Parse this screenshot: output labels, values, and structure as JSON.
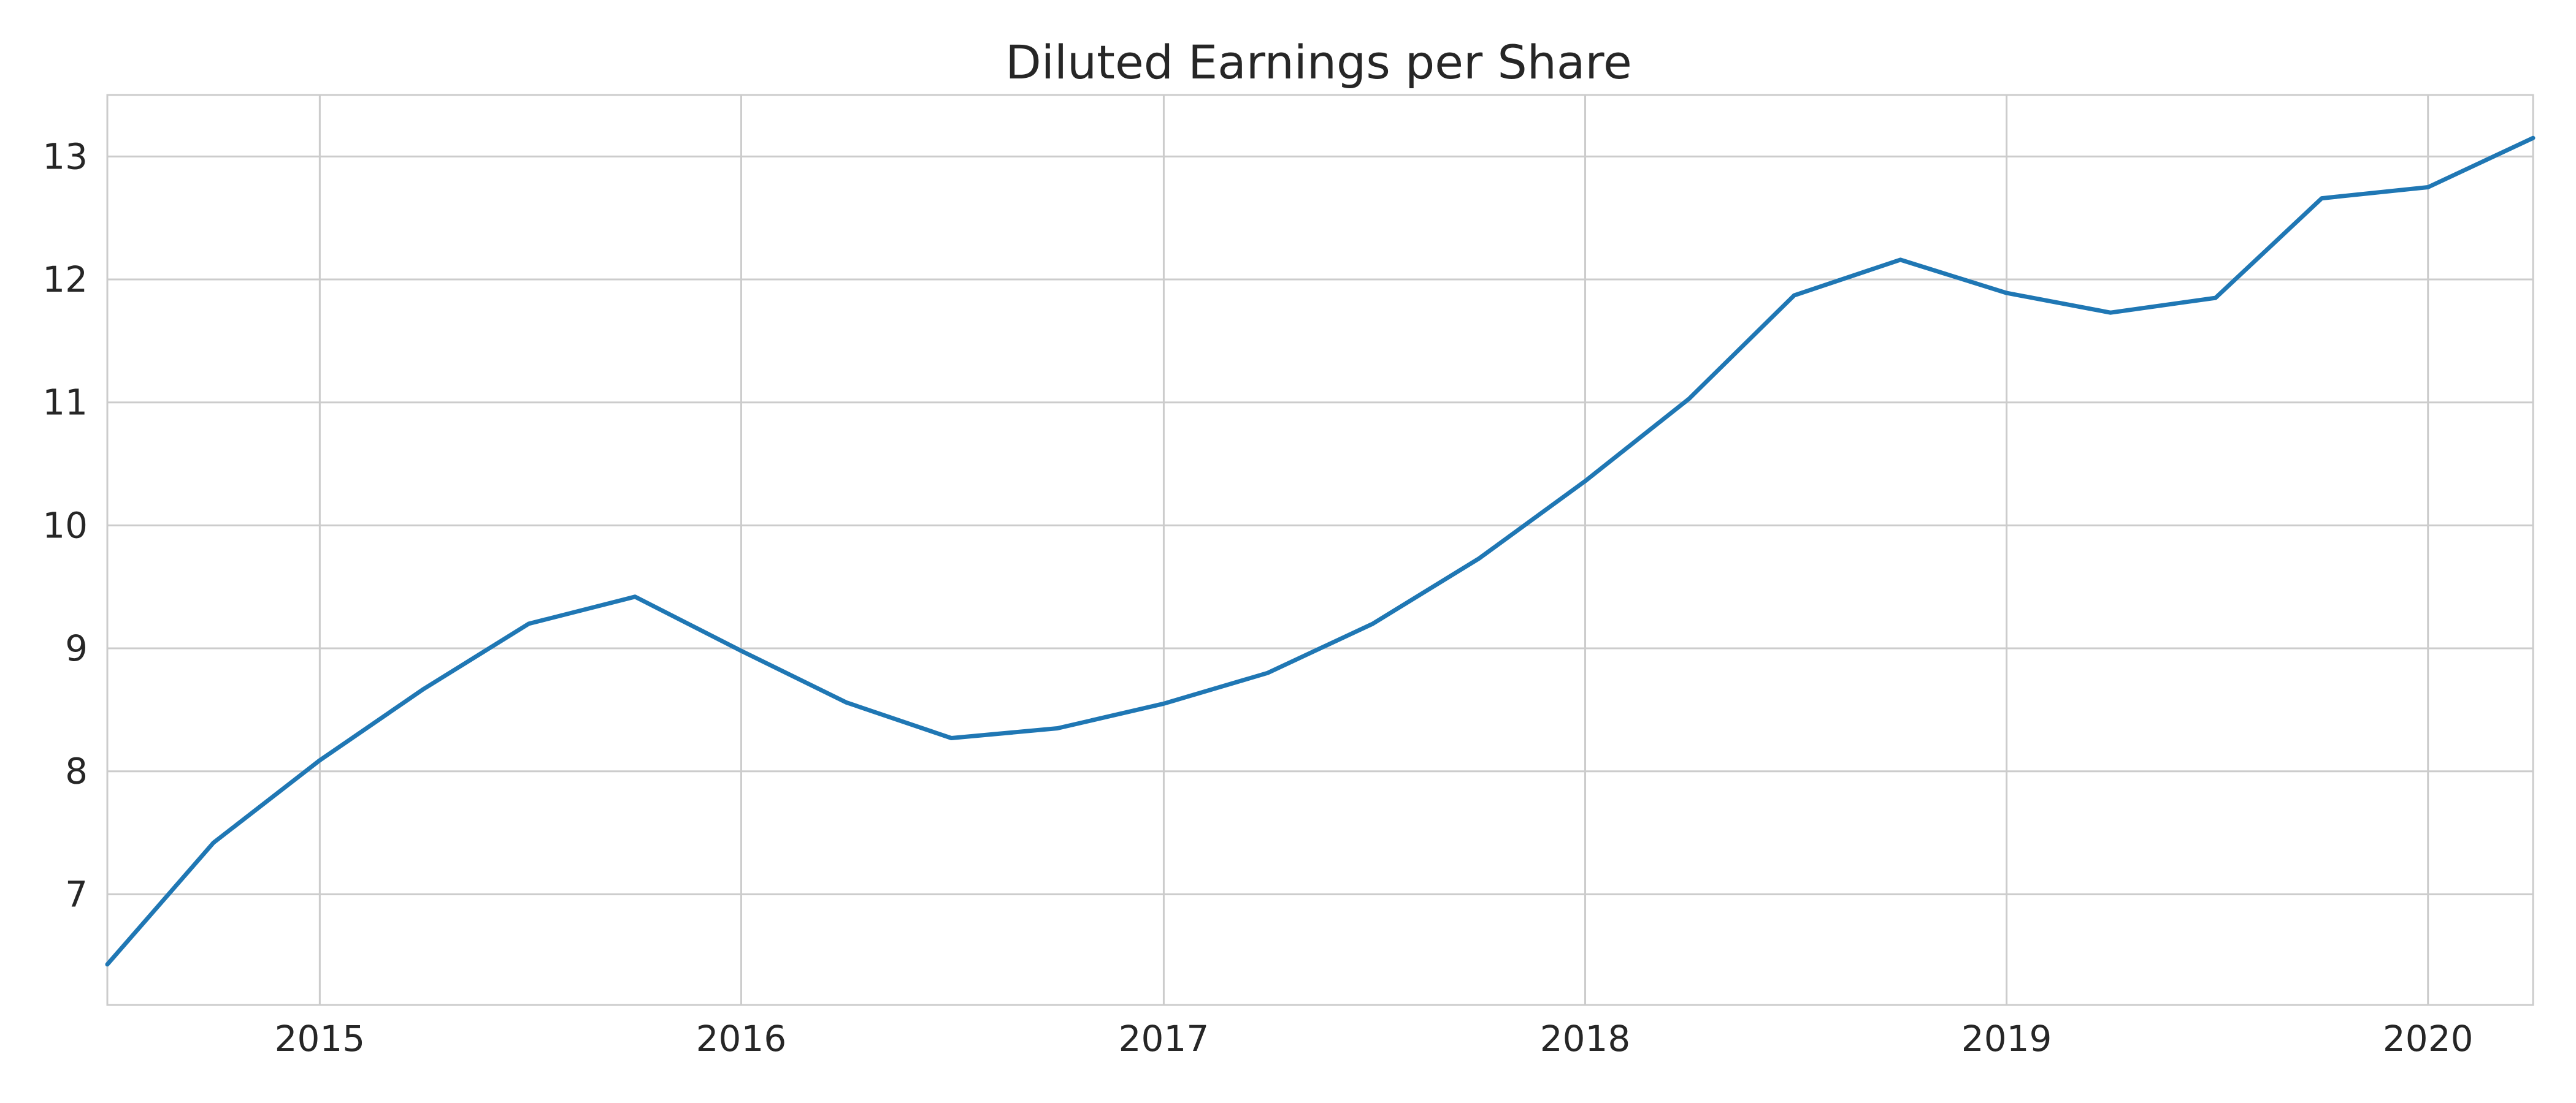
{
  "chart_data": {
    "type": "line",
    "title": "Diluted Earnings per Share",
    "xlabel": "",
    "ylabel": "",
    "x_axis_type": "date",
    "xlim": [
      "2014-07-01",
      "2020-04-01"
    ],
    "ylim": [
      6.1,
      13.5
    ],
    "x_ticks": [
      "2015-01-01",
      "2016-01-01",
      "2017-01-01",
      "2018-01-01",
      "2019-01-01",
      "2020-01-01"
    ],
    "x_tick_labels": [
      "2015",
      "2016",
      "2017",
      "2018",
      "2019",
      "2020"
    ],
    "y_ticks": [
      7,
      8,
      9,
      10,
      11,
      12,
      13
    ],
    "y_tick_labels": [
      "7",
      "8",
      "9",
      "10",
      "11",
      "12",
      "13"
    ],
    "grid": true,
    "legend": "none",
    "series": [
      {
        "color": "#1f77b4",
        "x": [
          "2014-07-01",
          "2014-10-01",
          "2015-01-01",
          "2015-04-01",
          "2015-07-01",
          "2015-10-01",
          "2016-01-01",
          "2016-04-01",
          "2016-07-01",
          "2016-10-01",
          "2017-01-01",
          "2017-04-01",
          "2017-07-01",
          "2017-10-01",
          "2018-01-01",
          "2018-04-01",
          "2018-07-01",
          "2018-10-01",
          "2019-01-01",
          "2019-04-01",
          "2019-07-01",
          "2019-10-01",
          "2020-01-01",
          "2020-04-01"
        ],
        "values": [
          6.43,
          7.42,
          8.09,
          8.67,
          9.2,
          9.42,
          8.98,
          8.56,
          8.27,
          8.35,
          8.55,
          8.8,
          9.2,
          9.73,
          10.36,
          11.03,
          11.87,
          12.16,
          11.89,
          11.73,
          11.85,
          12.66,
          12.75,
          13.15
        ]
      }
    ]
  }
}
